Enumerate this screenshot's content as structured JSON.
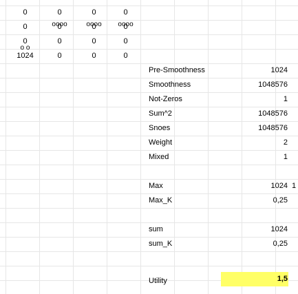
{
  "grid": {
    "rows": [
      {
        "a": "0",
        "b": "0",
        "c": "0",
        "d": "0"
      },
      {
        "a": "0",
        "b": "0",
        "c": "0",
        "d": "0"
      },
      {
        "a": "0",
        "b": "0",
        "c": "0",
        "d": "0"
      },
      {
        "a": "1024",
        "b": "0",
        "c": "0",
        "d": "0"
      }
    ],
    "stacked_b": [
      "o",
      "o",
      "o",
      "o"
    ],
    "stacked_c": [
      "o",
      "o",
      "o",
      "o"
    ],
    "stacked_d": [
      "o",
      "o",
      "o",
      "o"
    ],
    "col_a_extra": [
      "o",
      "o"
    ]
  },
  "metrics": [
    {
      "label": "Pre-Smoothness",
      "value": "1024"
    },
    {
      "label": "Smoothness",
      "value": "1048576"
    },
    {
      "label": "Not-Zeros",
      "value": "1"
    },
    {
      "label": "Sum^2",
      "value": "1048576"
    },
    {
      "label": "Snoes",
      "value": "1048576"
    },
    {
      "label": "Weight",
      "value": "2"
    },
    {
      "label": "Mixed",
      "value": "1"
    }
  ],
  "max": {
    "label": "Max",
    "value": "1024",
    "side": "1"
  },
  "max_k": {
    "label": "Max_K",
    "value": "0,25"
  },
  "sum": {
    "label": "sum",
    "value": "1024"
  },
  "sum_k": {
    "label": "sum_K",
    "value": "0,25"
  },
  "utility": {
    "label": "Utility",
    "value": "1,5",
    "highlight": "#ffff66"
  }
}
